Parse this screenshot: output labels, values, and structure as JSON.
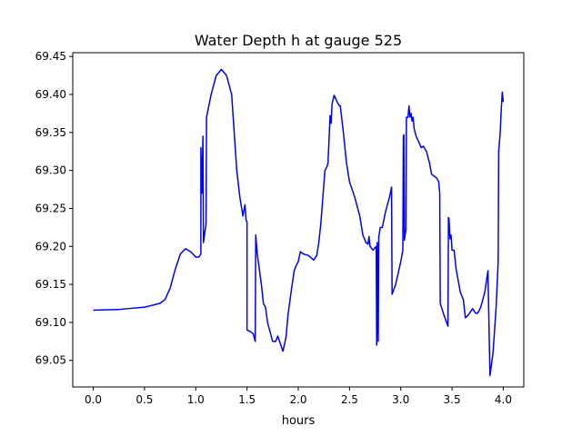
{
  "chart_data": {
    "type": "line",
    "title": "Water Depth h at gauge 525",
    "xlabel": "hours",
    "ylabel": "",
    "xlim": [
      -0.2,
      4.2
    ],
    "ylim": [
      69.015,
      69.455
    ],
    "xticks": [
      0.0,
      0.5,
      1.0,
      1.5,
      2.0,
      2.5,
      3.0,
      3.5,
      4.0
    ],
    "xtick_labels": [
      "0.0",
      "0.5",
      "1.0",
      "1.5",
      "2.0",
      "2.5",
      "3.0",
      "3.5",
      "4.0"
    ],
    "yticks": [
      69.05,
      69.1,
      69.15,
      69.2,
      69.25,
      69.3,
      69.35,
      69.4,
      69.45
    ],
    "ytick_labels": [
      "69.05",
      "69.10",
      "69.15",
      "69.20",
      "69.25",
      "69.30",
      "69.35",
      "69.40",
      "69.45"
    ],
    "grid": false,
    "legend": "none",
    "series": [
      {
        "color": "#0000ff",
        "points": [
          [
            0.0,
            69.116
          ],
          [
            0.25,
            69.117
          ],
          [
            0.5,
            69.12
          ],
          [
            0.65,
            69.125
          ],
          [
            0.7,
            69.13
          ],
          [
            0.75,
            69.145
          ],
          [
            0.8,
            69.17
          ],
          [
            0.85,
            69.19
          ],
          [
            0.9,
            69.197
          ],
          [
            0.95,
            69.193
          ],
          [
            1.0,
            69.186
          ],
          [
            1.03,
            69.186
          ],
          [
            1.05,
            69.19
          ],
          [
            1.05,
            69.33
          ],
          [
            1.06,
            69.27
          ],
          [
            1.07,
            69.345
          ],
          [
            1.075,
            69.205
          ],
          [
            1.1,
            69.23
          ],
          [
            1.105,
            69.37
          ],
          [
            1.15,
            69.4
          ],
          [
            1.2,
            69.425
          ],
          [
            1.25,
            69.433
          ],
          [
            1.3,
            69.425
          ],
          [
            1.35,
            69.4
          ],
          [
            1.4,
            69.3
          ],
          [
            1.43,
            69.265
          ],
          [
            1.46,
            69.24
          ],
          [
            1.48,
            69.255
          ],
          [
            1.49,
            69.235
          ],
          [
            1.5,
            69.232
          ],
          [
            1.5,
            69.09
          ],
          [
            1.53,
            69.088
          ],
          [
            1.56,
            69.085
          ],
          [
            1.58,
            69.075
          ],
          [
            1.585,
            69.215
          ],
          [
            1.6,
            69.19
          ],
          [
            1.62,
            69.17
          ],
          [
            1.64,
            69.15
          ],
          [
            1.66,
            69.125
          ],
          [
            1.68,
            69.12
          ],
          [
            1.7,
            69.1
          ],
          [
            1.73,
            69.085
          ],
          [
            1.75,
            69.075
          ],
          [
            1.78,
            69.075
          ],
          [
            1.8,
            69.082
          ],
          [
            1.83,
            69.07
          ],
          [
            1.85,
            69.062
          ],
          [
            1.88,
            69.08
          ],
          [
            1.9,
            69.11
          ],
          [
            1.93,
            69.14
          ],
          [
            1.96,
            69.168
          ],
          [
            1.98,
            69.175
          ],
          [
            2.0,
            69.18
          ],
          [
            2.02,
            69.193
          ],
          [
            2.05,
            69.19
          ],
          [
            2.1,
            69.188
          ],
          [
            2.15,
            69.182
          ],
          [
            2.18,
            69.188
          ],
          [
            2.2,
            69.205
          ],
          [
            2.22,
            69.23
          ],
          [
            2.24,
            69.265
          ],
          [
            2.26,
            69.3
          ],
          [
            2.28,
            69.305
          ],
          [
            2.29,
            69.31
          ],
          [
            2.3,
            69.34
          ],
          [
            2.31,
            69.372
          ],
          [
            2.32,
            69.362
          ],
          [
            2.33,
            69.388
          ],
          [
            2.35,
            69.399
          ],
          [
            2.38,
            69.39
          ],
          [
            2.4,
            69.385
          ],
          [
            2.41,
            69.385
          ],
          [
            2.44,
            69.35
          ],
          [
            2.47,
            69.31
          ],
          [
            2.5,
            69.285
          ],
          [
            2.55,
            69.265
          ],
          [
            2.6,
            69.24
          ],
          [
            2.63,
            69.215
          ],
          [
            2.66,
            69.205
          ],
          [
            2.68,
            69.203
          ],
          [
            2.69,
            69.213
          ],
          [
            2.7,
            69.2
          ],
          [
            2.73,
            69.195
          ],
          [
            2.76,
            69.2
          ],
          [
            2.765,
            69.07
          ],
          [
            2.77,
            69.205
          ],
          [
            2.78,
            69.075
          ],
          [
            2.785,
            69.212
          ],
          [
            2.8,
            69.225
          ],
          [
            2.82,
            69.225
          ],
          [
            2.85,
            69.245
          ],
          [
            2.87,
            69.255
          ],
          [
            2.89,
            69.265
          ],
          [
            2.91,
            69.278
          ],
          [
            2.915,
            69.137
          ],
          [
            2.95,
            69.15
          ],
          [
            3.0,
            69.18
          ],
          [
            3.02,
            69.195
          ],
          [
            3.025,
            69.345
          ],
          [
            3.03,
            69.347
          ],
          [
            3.035,
            69.208
          ],
          [
            3.05,
            69.222
          ],
          [
            3.055,
            69.37
          ],
          [
            3.07,
            69.37
          ],
          [
            3.08,
            69.385
          ],
          [
            3.09,
            69.37
          ],
          [
            3.1,
            69.375
          ],
          [
            3.11,
            69.365
          ],
          [
            3.12,
            69.37
          ],
          [
            3.13,
            69.355
          ],
          [
            3.15,
            69.345
          ],
          [
            3.2,
            69.33
          ],
          [
            3.22,
            69.332
          ],
          [
            3.25,
            69.325
          ],
          [
            3.28,
            69.31
          ],
          [
            3.3,
            69.295
          ],
          [
            3.35,
            69.29
          ],
          [
            3.37,
            69.285
          ],
          [
            3.38,
            69.27
          ],
          [
            3.385,
            69.125
          ],
          [
            3.42,
            69.11
          ],
          [
            3.46,
            69.095
          ],
          [
            3.465,
            69.238
          ],
          [
            3.47,
            69.237
          ],
          [
            3.48,
            69.21
          ],
          [
            3.49,
            69.215
          ],
          [
            3.5,
            69.195
          ],
          [
            3.52,
            69.195
          ],
          [
            3.54,
            69.17
          ],
          [
            3.56,
            69.155
          ],
          [
            3.58,
            69.14
          ],
          [
            3.61,
            69.13
          ],
          [
            3.63,
            69.106
          ],
          [
            3.66,
            69.11
          ],
          [
            3.7,
            69.118
          ],
          [
            3.73,
            69.112
          ],
          [
            3.75,
            69.112
          ],
          [
            3.78,
            69.12
          ],
          [
            3.82,
            69.14
          ],
          [
            3.85,
            69.168
          ],
          [
            3.87,
            69.03
          ],
          [
            3.9,
            69.06
          ],
          [
            3.93,
            69.12
          ],
          [
            3.95,
            69.18
          ],
          [
            3.955,
            69.325
          ],
          [
            3.97,
            69.35
          ],
          [
            3.98,
            69.38
          ],
          [
            3.99,
            69.403
          ],
          [
            4.0,
            69.39
          ]
        ]
      }
    ]
  }
}
